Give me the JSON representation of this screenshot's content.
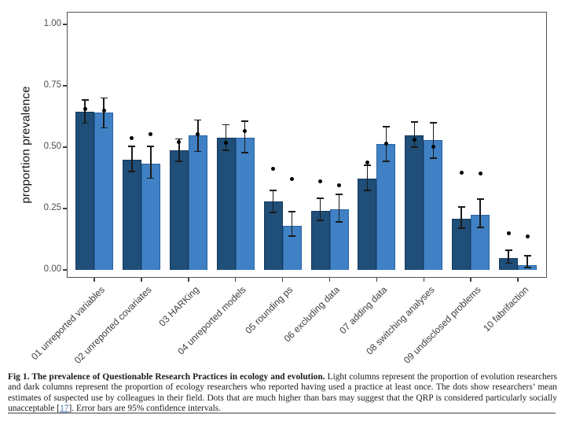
{
  "figure": {
    "caption": {
      "fig_label": "Fig 1. The prevalence of Questionable Research Practices in ecology and evolution.",
      "body_before_ref": " Light columns represent the proportion of evolution researchers and dark columns represent the proportion of ecology researchers who reported having used a practice at least once. The dots show researchers’ mean estimates of suspected use by colleagues in their field. Dots that are much higher than bars may suggest that the QRP is considered particularly socially unacceptable [",
      "ref": "17",
      "after_ref": "]. Error bars are 95% confidence intervals."
    }
  },
  "chart_data": {
    "type": "bar",
    "title": "",
    "xlabel": "",
    "ylabel": "proportion prevalence",
    "ylim": [
      0,
      1
    ],
    "ytick_values": [
      0,
      0.25,
      0.5,
      0.75,
      1.0
    ],
    "ytick_labels": [
      "0.00",
      "0.25",
      "0.50",
      "0.75",
      "1.00"
    ],
    "grid": false,
    "legend": "none",
    "error_bars": "95% confidence intervals",
    "dots_meaning": "researchers' mean estimates of suspected use by colleagues",
    "categories": [
      "01 unreported variables",
      "02 unreported covariates",
      "03 HARKing",
      "04 unreported models",
      "05 rounding ps",
      "06 excluding data",
      "07 adding data",
      "08 switching analyses",
      "09 undisclosed problems",
      "10 fabrifaction"
    ],
    "series": [
      {
        "name": "ecology researchers (dark columns)",
        "color": "#1f4e79",
        "edge": "#17395a",
        "values": [
          0.645,
          0.448,
          0.487,
          0.538,
          0.279,
          0.24,
          0.372,
          0.548,
          0.208,
          0.048
        ],
        "ci_low": [
          0.597,
          0.4,
          0.442,
          0.487,
          0.234,
          0.202,
          0.324,
          0.5,
          0.17,
          0.028
        ],
        "ci_high": [
          0.693,
          0.504,
          0.533,
          0.592,
          0.324,
          0.292,
          0.426,
          0.603,
          0.256,
          0.08
        ],
        "dots": [
          0.654,
          0.538,
          0.522,
          0.519,
          0.413,
          0.359,
          0.439,
          0.532,
          0.397,
          0.148
        ]
      },
      {
        "name": "evolution researchers (light columns)",
        "color": "#3f81c4",
        "edge": "#2b62a0",
        "values": [
          0.642,
          0.434,
          0.549,
          0.538,
          0.179,
          0.247,
          0.513,
          0.529,
          0.224,
          0.019
        ],
        "ci_low": [
          0.578,
          0.373,
          0.483,
          0.477,
          0.138,
          0.196,
          0.442,
          0.455,
          0.173,
          0.01
        ],
        "ci_high": [
          0.701,
          0.504,
          0.611,
          0.605,
          0.237,
          0.308,
          0.583,
          0.599,
          0.288,
          0.058
        ],
        "dots": [
          0.648,
          0.554,
          0.554,
          0.565,
          0.369,
          0.343,
          0.513,
          0.503,
          0.394,
          0.135
        ]
      }
    ]
  }
}
